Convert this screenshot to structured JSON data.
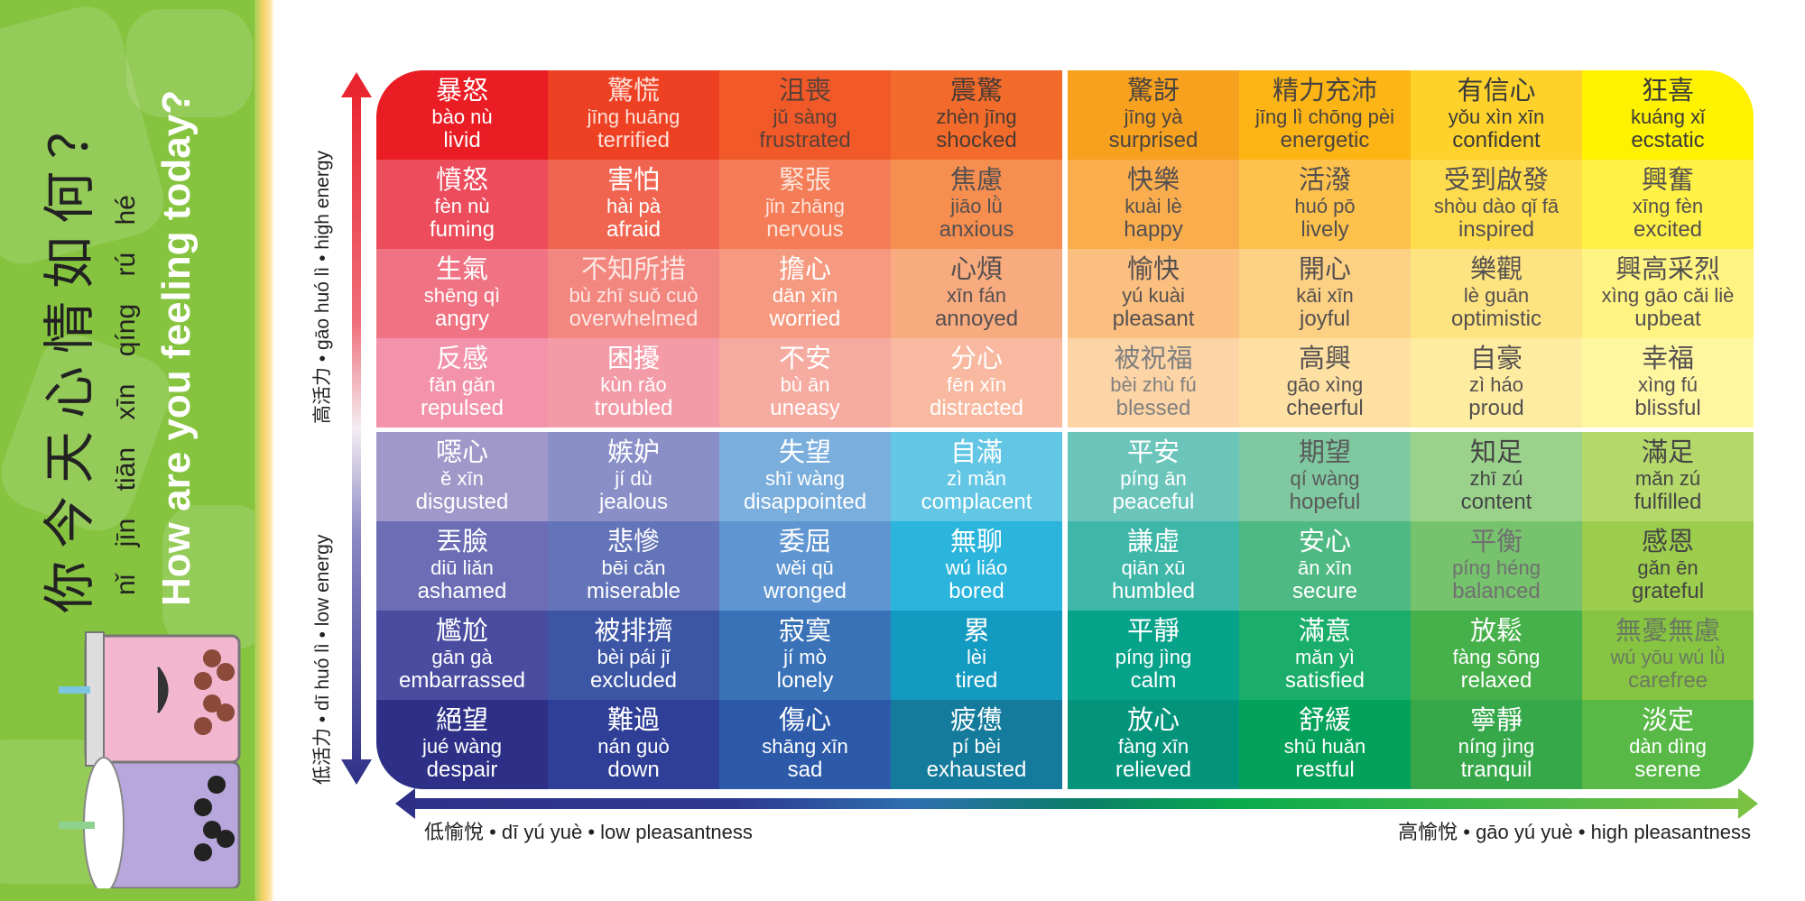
{
  "title": {
    "chinese": "你今天心情如何？",
    "pinyin": "nǐ jīn tiān xīn qíng rú hé",
    "english": "How are you feeling today?"
  },
  "axes": {
    "high_energy": "高活力 • gāo huó lì • high energy",
    "low_energy": "低活力 • dī huó lì • low energy",
    "low_pleasantness": "低愉悅 • dī yú yuè • low pleasantness",
    "high_pleasantness": "高愉悅 • gāo yú yuè • high pleasantness"
  },
  "colors": {
    "panel_green": "#86c440",
    "energy_arrow_top": "#e8202a",
    "energy_arrow_bottom": "#2e3088",
    "pleasant_arrow_left": "#2e3088",
    "pleasant_arrow_right": "#7dc242"
  },
  "grid": {
    "rows": [
      [
        {
          "zh": "暴怒",
          "py": "bào nù",
          "en": "livid",
          "bg": "#ea1c24",
          "fg": "#ffffff"
        },
        {
          "zh": "驚慌",
          "py": "jīng huāng",
          "en": "terrified",
          "bg": "#ee4124",
          "fg": "#fde0d8"
        },
        {
          "zh": "沮喪",
          "py": "jǔ sàng",
          "en": "frustrated",
          "bg": "#f15a28",
          "fg": "#5a4038"
        },
        {
          "zh": "震驚",
          "py": "zhèn jīng",
          "en": "shocked",
          "bg": "#f26b2a",
          "fg": "#4a3a34"
        },
        {
          "zh": "驚訝",
          "py": "jīng yà",
          "en": "surprised",
          "bg": "#f7a11f",
          "fg": "#4a4440"
        },
        {
          "zh": "精力充沛",
          "py": "jīng lì chōng pèi",
          "en": "energetic",
          "bg": "#fcb515",
          "fg": "#4a4440"
        },
        {
          "zh": "有信心",
          "py": "yǒu xìn xīn",
          "en": "confident",
          "bg": "#fed22a",
          "fg": "#3a3a3a"
        },
        {
          "zh": "狂喜",
          "py": "kuáng xǐ",
          "en": "ecstatic",
          "bg": "#fff200",
          "fg": "#3a3a3a"
        }
      ],
      [
        {
          "zh": "憤怒",
          "py": "fèn nù",
          "en": "fuming",
          "bg": "#ed4c5c",
          "fg": "#ffffff"
        },
        {
          "zh": "害怕",
          "py": "hài pà",
          "en": "afraid",
          "bg": "#f06450",
          "fg": "#ffffff"
        },
        {
          "zh": "緊張",
          "py": "jǐn zhāng",
          "en": "nervous",
          "bg": "#f47c56",
          "fg": "#fde3da"
        },
        {
          "zh": "焦慮",
          "py": "jiāo lǜ",
          "en": "anxious",
          "bg": "#f68e50",
          "fg": "#555050"
        },
        {
          "zh": "快樂",
          "py": "kuài lè",
          "en": "happy",
          "bg": "#f9ad4d",
          "fg": "#555050"
        },
        {
          "zh": "活潑",
          "py": "huó pō",
          "en": "lively",
          "bg": "#fdc14c",
          "fg": "#555050"
        },
        {
          "zh": "受到啟發",
          "py": "shòu dào qǐ fā",
          "en": "inspired",
          "bg": "#fedc4d",
          "fg": "#555050"
        },
        {
          "zh": "興奮",
          "py": "xīng fèn",
          "en": "excited",
          "bg": "#fff145",
          "fg": "#555050"
        }
      ],
      [
        {
          "zh": "生氣",
          "py": "shēng qì",
          "en": "angry",
          "bg": "#f07384",
          "fg": "#ffffff"
        },
        {
          "zh": "不知所措",
          "py": "bù zhī suǒ cuò",
          "en": "overwhelmed",
          "bg": "#f2877f",
          "fg": "#fde6e3"
        },
        {
          "zh": "擔心",
          "py": "dān xīn",
          "en": "worried",
          "bg": "#f59a80",
          "fg": "#ffffff"
        },
        {
          "zh": "心煩",
          "py": "xīn fán",
          "en": "annoyed",
          "bg": "#f8ab7f",
          "fg": "#555050"
        },
        {
          "zh": "愉快",
          "py": "yú kuài",
          "en": "pleasant",
          "bg": "#fbbf80",
          "fg": "#555050"
        },
        {
          "zh": "開心",
          "py": "kāi xīn",
          "en": "joyful",
          "bg": "#fdd183",
          "fg": "#555050"
        },
        {
          "zh": "樂觀",
          "py": "lè guān",
          "en": "optimistic",
          "bg": "#fee381",
          "fg": "#555050"
        },
        {
          "zh": "興高采烈",
          "py": "xìng gāo cǎi liè",
          "en": "upbeat",
          "bg": "#fff382",
          "fg": "#555050"
        }
      ],
      [
        {
          "zh": "反感",
          "py": "fǎn gǎn",
          "en": "repulsed",
          "bg": "#f292ab",
          "fg": "#ffffff"
        },
        {
          "zh": "困擾",
          "py": "kùn rǎo",
          "en": "troubled",
          "bg": "#f39ba7",
          "fg": "#ffffff"
        },
        {
          "zh": "不安",
          "py": "bù ān",
          "en": "uneasy",
          "bg": "#f6aba0",
          "fg": "#ffffff"
        },
        {
          "zh": "分心",
          "py": "fēn xīn",
          "en": "distracted",
          "bg": "#f9b9a0",
          "fg": "#ffffff"
        },
        {
          "zh": "被祝福",
          "py": "bèi zhù fú",
          "en": "blessed",
          "bg": "#fdd4a5",
          "fg": "#808080"
        },
        {
          "zh": "高興",
          "py": "gāo xìng",
          "en": "cheerful",
          "bg": "#fee0a2",
          "fg": "#555050"
        },
        {
          "zh": "自豪",
          "py": "zì háo",
          "en": "proud",
          "bg": "#feeca0",
          "fg": "#555050"
        },
        {
          "zh": "幸福",
          "py": "xìng fú",
          "en": "blissful",
          "bg": "#fff6a0",
          "fg": "#555050"
        }
      ],
      [
        {
          "zh": "噁心",
          "py": "ě xīn",
          "en": "disgusted",
          "bg": "#9f98c9",
          "fg": "#ffffff"
        },
        {
          "zh": "嫉妒",
          "py": "jí dù",
          "en": "jealous",
          "bg": "#8a8fc8",
          "fg": "#ffffff"
        },
        {
          "zh": "失望",
          "py": "shī wàng",
          "en": "disappointed",
          "bg": "#7aaedc",
          "fg": "#ffffff"
        },
        {
          "zh": "自滿",
          "py": "zì mǎn",
          "en": "complacent",
          "bg": "#62c6e4",
          "fg": "#ffffff"
        },
        {
          "zh": "平安",
          "py": "píng ān",
          "en": "peaceful",
          "bg": "#6cc5bb",
          "fg": "#ffffff"
        },
        {
          "zh": "期望",
          "py": "qí wàng",
          "en": "hopeful",
          "bg": "#7fc8a0",
          "fg": "#5a5a5a"
        },
        {
          "zh": "知足",
          "py": "zhī zú",
          "en": "content",
          "bg": "#9ad28c",
          "fg": "#444444"
        },
        {
          "zh": "滿足",
          "py": "mǎn zú",
          "en": "fulfilled",
          "bg": "#b4d96a",
          "fg": "#444444"
        }
      ],
      [
        {
          "zh": "丟臉",
          "py": "diū liǎn",
          "en": "ashamed",
          "bg": "#6c6db5",
          "fg": "#ffffff"
        },
        {
          "zh": "悲慘",
          "py": "bēi cǎn",
          "en": "miserable",
          "bg": "#6474b8",
          "fg": "#ffffff"
        },
        {
          "zh": "委屈",
          "py": "wěi qū",
          "en": "wronged",
          "bg": "#5f95d0",
          "fg": "#ffffff"
        },
        {
          "zh": "無聊",
          "py": "wú liáo",
          "en": "bored",
          "bg": "#2cb5dc",
          "fg": "#ffffff"
        },
        {
          "zh": "謙虛",
          "py": "qiān xū",
          "en": "humbled",
          "bg": "#3eb7a8",
          "fg": "#ffffff"
        },
        {
          "zh": "安心",
          "py": "ān xīn",
          "en": "secure",
          "bg": "#4fb983",
          "fg": "#ffffff"
        },
        {
          "zh": "平衡",
          "py": "píng héng",
          "en": "balanced",
          "bg": "#76c26d",
          "fg": "#707070"
        },
        {
          "zh": "感恩",
          "py": "gǎn ēn",
          "en": "grateful",
          "bg": "#9ccd4c",
          "fg": "#444444"
        }
      ],
      [
        {
          "zh": "尷尬",
          "py": "gān gà",
          "en": "embarrassed",
          "bg": "#4a4ca0",
          "fg": "#ffffff"
        },
        {
          "zh": "被排擠",
          "py": "bèi pái jǐ",
          "en": "excluded",
          "bg": "#3c55a5",
          "fg": "#ffffff"
        },
        {
          "zh": "寂寞",
          "py": "jí mò",
          "en": "lonely",
          "bg": "#3a72b8",
          "fg": "#ffffff"
        },
        {
          "zh": "累",
          "py": "lèi",
          "en": "tired",
          "bg": "#139ac0",
          "fg": "#ffffff"
        },
        {
          "zh": "平靜",
          "py": "píng jìng",
          "en": "calm",
          "bg": "#06a28a",
          "fg": "#ffffff"
        },
        {
          "zh": "滿意",
          "py": "mǎn yì",
          "en": "satisfied",
          "bg": "#1aae6a",
          "fg": "#ffffff"
        },
        {
          "zh": "放鬆",
          "py": "fàng sōng",
          "en": "relaxed",
          "bg": "#46b04a",
          "fg": "#ffffff"
        },
        {
          "zh": "無憂無慮",
          "py": "wú yōu wú lǜ",
          "en": "carefree",
          "bg": "#86c441",
          "fg": "#6a7a60"
        }
      ],
      [
        {
          "zh": "絕望",
          "py": "jué wàng",
          "en": "despair",
          "bg": "#2e3088",
          "fg": "#ffffff"
        },
        {
          "zh": "難過",
          "py": "nán guò",
          "en": "down",
          "bg": "#2f3e96",
          "fg": "#ffffff"
        },
        {
          "zh": "傷心",
          "py": "shāng xīn",
          "en": "sad",
          "bg": "#2c5aa8",
          "fg": "#ffffff"
        },
        {
          "zh": "疲憊",
          "py": "pí bèi",
          "en": "exhausted",
          "bg": "#157b9c",
          "fg": "#ffffff"
        },
        {
          "zh": "放心",
          "py": "fàng xīn",
          "en": "relieved",
          "bg": "#04947c",
          "fg": "#ffffff"
        },
        {
          "zh": "舒緩",
          "py": "shū huǎn",
          "en": "restful",
          "bg": "#04a15a",
          "fg": "#ffffff"
        },
        {
          "zh": "寧靜",
          "py": "níng jìng",
          "en": "tranquil",
          "bg": "#36a84a",
          "fg": "#ffffff"
        },
        {
          "zh": "淡定",
          "py": "dàn dìng",
          "en": "serene",
          "bg": "#58b947",
          "fg": "#ffffff"
        }
      ]
    ]
  }
}
